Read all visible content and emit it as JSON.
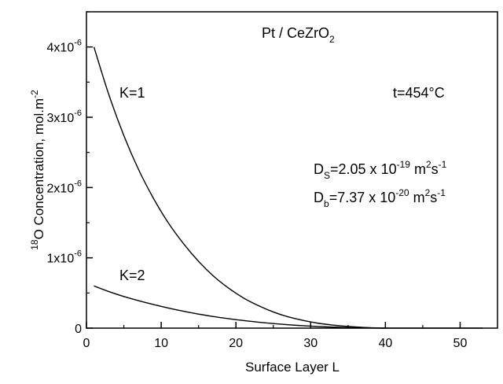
{
  "chart_data": {
    "type": "line",
    "title": "Pt / CeZrO",
    "title_sub": "2",
    "xlabel": "Surface Layer L",
    "ylabel": "O Concentration,  mol.m",
    "ylabel_sup_pre": "18",
    "ylabel_sup_post": "-2",
    "xlim": [
      0,
      55
    ],
    "ylim": [
      0,
      4.5e-06
    ],
    "x_ticks": [
      {
        "value": 0,
        "label": "0"
      },
      {
        "value": 10,
        "label": "10"
      },
      {
        "value": 20,
        "label": "20"
      },
      {
        "value": 30,
        "label": "30"
      },
      {
        "value": 40,
        "label": "40"
      },
      {
        "value": 50,
        "label": "50"
      }
    ],
    "y_ticks": [
      {
        "value": 0,
        "label": "0",
        "exp": ""
      },
      {
        "value": 1e-06,
        "label": "1x10",
        "exp": "-6"
      },
      {
        "value": 2e-06,
        "label": "2x10",
        "exp": "-6"
      },
      {
        "value": 3e-06,
        "label": "3x10",
        "exp": "-6"
      },
      {
        "value": 4e-06,
        "label": "4x10",
        "exp": "-6"
      }
    ],
    "grid": false,
    "series": [
      {
        "name": "K=1",
        "x": [
          1,
          3,
          5,
          7,
          9,
          11,
          13,
          15,
          17,
          19,
          21,
          23,
          25,
          27,
          29,
          31,
          33,
          35,
          37,
          39,
          40,
          45,
          50,
          53
        ],
        "y": [
          4e-06,
          3.32e-06,
          2.74e-06,
          2.25e-06,
          1.84e-06,
          1.49e-06,
          1.2e-06,
          9.5e-07,
          7.4e-07,
          5.7e-07,
          4.3e-07,
          3.2e-07,
          2.3e-07,
          1.6e-07,
          1.1e-07,
          7e-08,
          4.3e-08,
          2.4e-08,
          1.1e-08,
          3e-09,
          0,
          0,
          0,
          0
        ]
      },
      {
        "name": "K=2",
        "x": [
          1,
          3,
          5,
          7,
          9,
          11,
          13,
          15,
          17,
          19,
          21,
          23,
          25,
          27,
          29,
          31,
          33,
          35,
          37,
          39,
          40
        ],
        "y": [
          6e-07,
          5.2e-07,
          4.5e-07,
          3.9e-07,
          3.35e-07,
          2.85e-07,
          2.4e-07,
          2e-07,
          1.65e-07,
          1.35e-07,
          1.08e-07,
          8.5e-08,
          6.5e-08,
          4.8e-08,
          3.4e-08,
          2.3e-08,
          1.4e-08,
          8e-09,
          4e-09,
          1e-09,
          0
        ]
      }
    ],
    "annotations": {
      "k1": "K=1",
      "k2": "K=2",
      "temp": "t=454°C",
      "ds": {
        "base": "D",
        "sub": "S",
        "mid": "=2.05 x 10",
        "exp": "-19",
        "unit1": " m",
        "unit1_exp": "2",
        "unit2": "s",
        "unit2_exp": "-1"
      },
      "db": {
        "base": "D",
        "sub": "b",
        "mid": "=7.37 x 10",
        "exp": "-20",
        "unit1": " m",
        "unit1_exp": "2",
        "unit2": "s",
        "unit2_exp": "-1"
      }
    }
  }
}
